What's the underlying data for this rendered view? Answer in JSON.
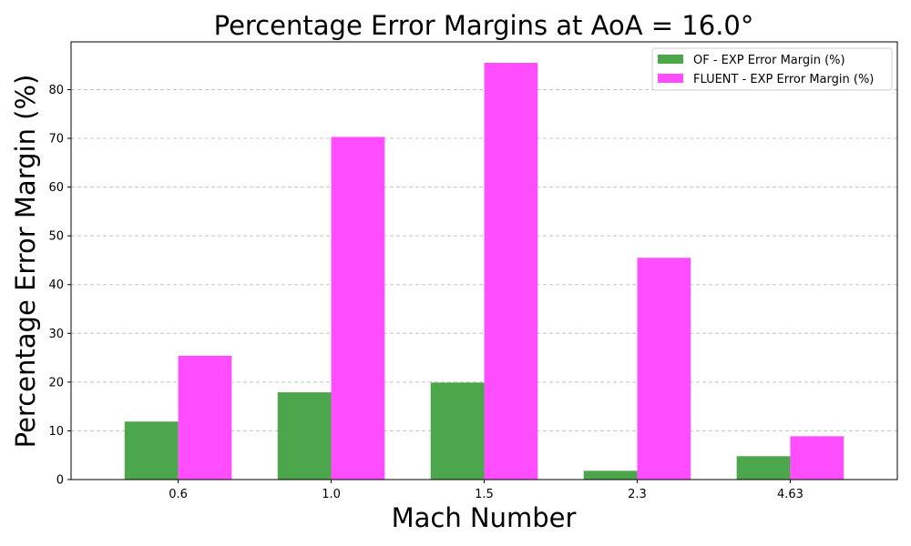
{
  "chart_data": {
    "type": "bar",
    "title": "Percentage Error Margins at AoA = 16.0°",
    "xlabel": "Mach Number",
    "ylabel": "Percentage Error Margin (%)",
    "categories": [
      "0.6",
      "1.0",
      "1.5",
      "2.3",
      "4.63"
    ],
    "series": [
      {
        "name": "OF - EXP Error Margin (%)",
        "values": [
          11.9,
          17.9,
          19.9,
          1.8,
          4.8
        ],
        "color": "#4ca64c"
      },
      {
        "name": "FLUENT - EXP Error Margin (%)",
        "values": [
          25.4,
          70.3,
          85.5,
          45.5,
          8.9
        ],
        "color": "#ff4dff"
      }
    ],
    "ylim": [
      0,
      89.8
    ],
    "yticks": [
      0,
      10,
      20,
      30,
      40,
      50,
      60,
      70,
      80
    ],
    "grid": "y-dashed",
    "legend_position": "top-right"
  }
}
